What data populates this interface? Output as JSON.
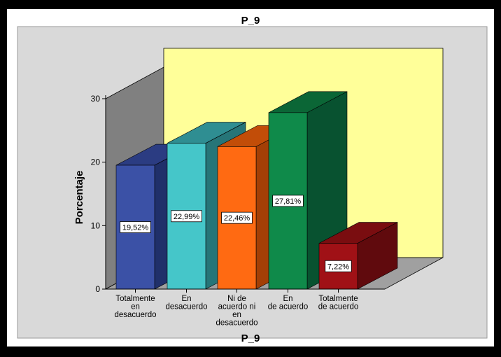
{
  "chart_data": {
    "type": "bar",
    "title": "P_9",
    "xlabel": "P_9",
    "ylabel": "Porcentaje",
    "categories": [
      [
        "Totalmente",
        "en",
        "desacuerdo"
      ],
      [
        "En",
        "desacuerdo"
      ],
      [
        "Ni de",
        "acuerdo ni",
        "en",
        "desacuerdo"
      ],
      [
        "En",
        "de  acuerdo"
      ],
      [
        "Totalmente",
        "de acuerdo"
      ]
    ],
    "values": [
      19.52,
      22.99,
      22.46,
      27.81,
      7.22
    ],
    "data_labels": [
      "19,52%",
      "22,99%",
      "22,46%",
      "27,81%",
      "7,22%"
    ],
    "yticks": [
      0,
      10,
      20,
      30
    ],
    "ylim": [
      0,
      30
    ],
    "colors": {
      "front": [
        "#3b51a6",
        "#45c6c9",
        "#ff6a12",
        "#0f8a4a",
        "#a01116"
      ],
      "top": [
        "#2b3c82",
        "#2f8e92",
        "#c24d08",
        "#0b6636",
        "#7a0d10"
      ],
      "side": [
        "#20306a",
        "#267578",
        "#a33f06",
        "#085230",
        "#600a0d"
      ],
      "back_wall": "#ffff99",
      "side_wall": "#808080",
      "floor": "#a0a0a0",
      "plot_area": "#d9d9d9"
    }
  }
}
